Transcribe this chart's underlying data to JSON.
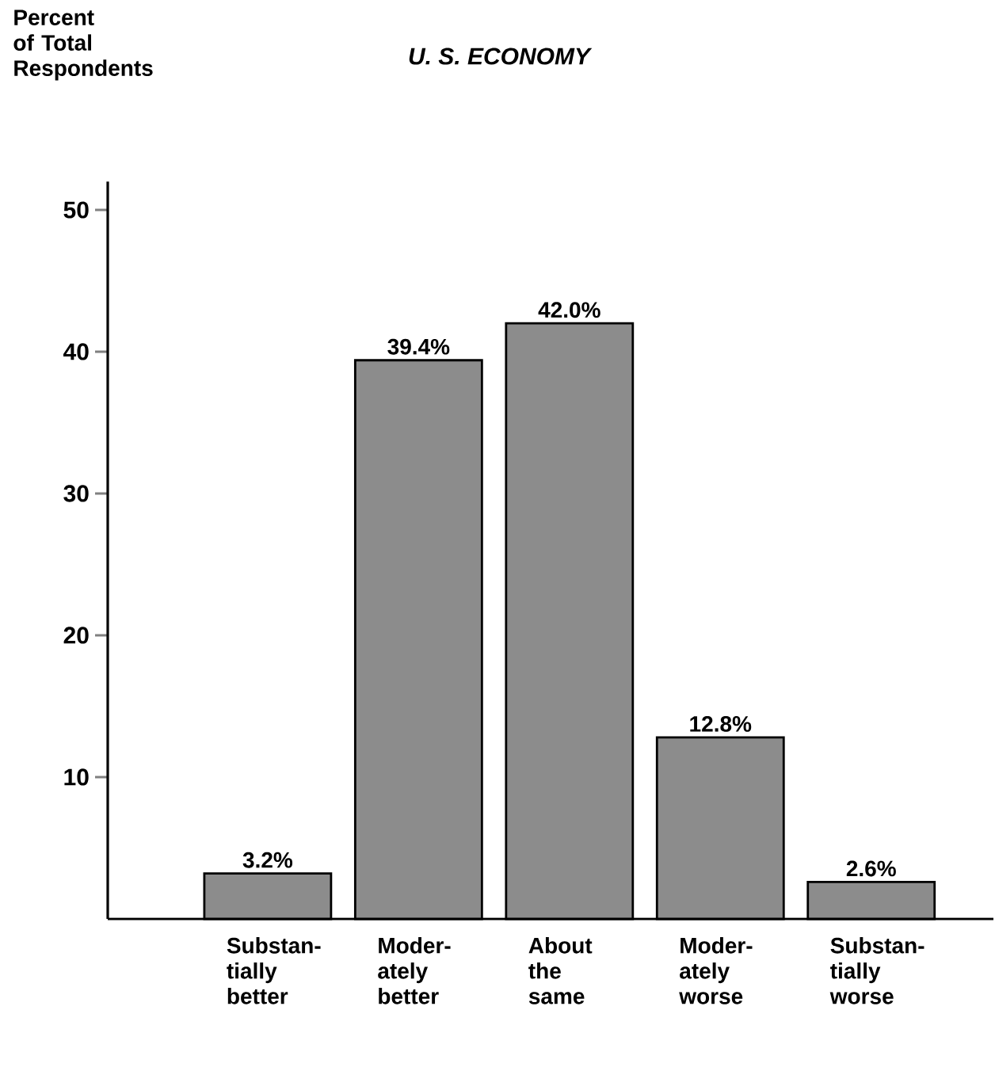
{
  "chart_data": {
    "type": "bar",
    "title": "U. S. ECONOMY",
    "ylabel": "Percent of Total Respondents",
    "categories": [
      "Substan- tially better",
      "Moder- ately better",
      "About the same",
      "Moder- ately worse",
      "Substan- tially worse"
    ],
    "values": [
      3.2,
      39.4,
      42.0,
      12.8,
      2.6
    ],
    "value_labels": [
      "3.2%",
      "39.4%",
      "42.0%",
      "12.8%",
      "2.6%"
    ],
    "color": "#8c8c8c",
    "ylim": [
      0,
      52
    ],
    "yticks": [
      10,
      20,
      30,
      40,
      50
    ],
    "grid": false
  }
}
